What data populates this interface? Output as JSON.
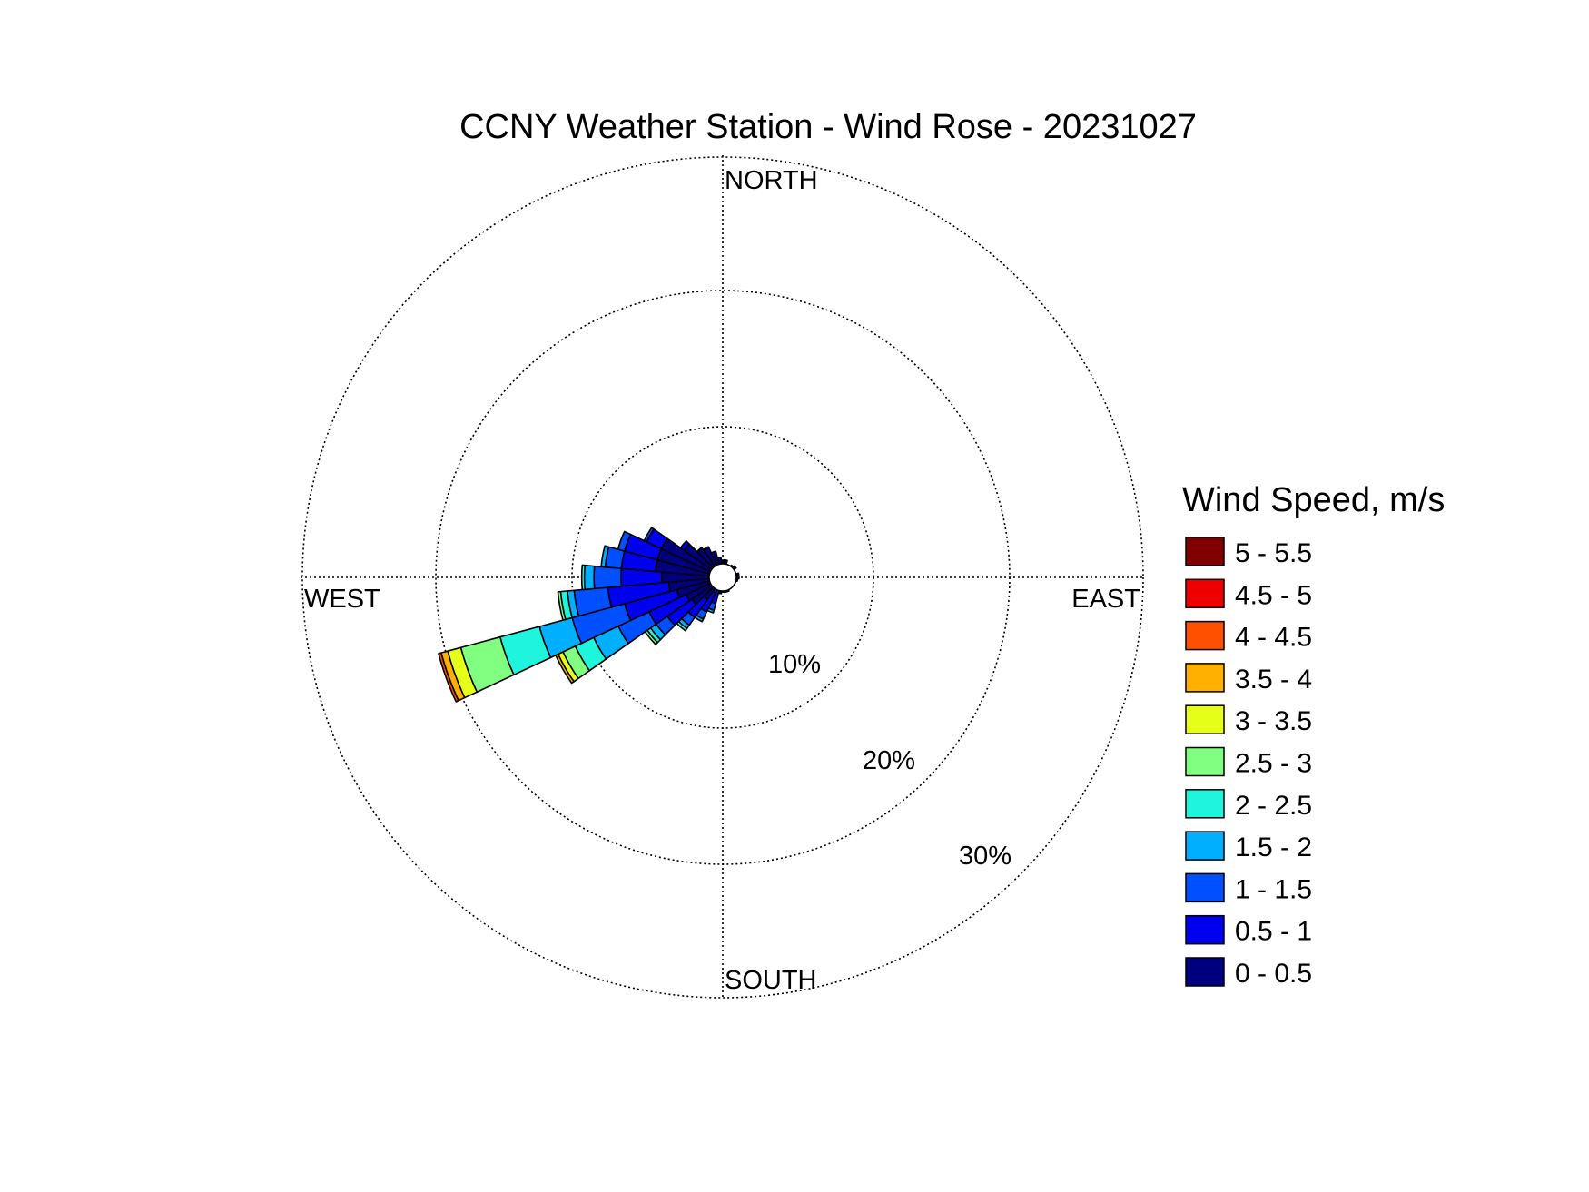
{
  "chart_data": {
    "type": "wind-rose",
    "title": "CCNY Weather Station - Wind Rose - 20231027",
    "direction_labels": {
      "north": "NORTH",
      "east": "EAST",
      "south": "SOUTH",
      "west": "WEST"
    },
    "radial_ticks": [
      {
        "value": 10,
        "label": "10%"
      },
      {
        "value": 20,
        "label": "20%"
      },
      {
        "value": 30,
        "label": "30%"
      }
    ],
    "radial_max": 31,
    "grid": true,
    "legend": {
      "title": "Wind Speed, m/s",
      "placement": "right",
      "bins": [
        {
          "label": "5 - 5.5",
          "color": "#800000"
        },
        {
          "label": "4.5 - 5",
          "color": "#ee0000"
        },
        {
          "label": "4 - 4.5",
          "color": "#ff5000"
        },
        {
          "label": "3.5 - 4",
          "color": "#ffb000"
        },
        {
          "label": "3 - 3.5",
          "color": "#e6ff18"
        },
        {
          "label": "2.5 - 3",
          "color": "#80ff80"
        },
        {
          "label": "2 - 2.5",
          "color": "#1ff5dc"
        },
        {
          "label": "1.5 - 2",
          "color": "#00b0ff"
        },
        {
          "label": "1 - 1.5",
          "color": "#0050ff"
        },
        {
          "label": "0.5 - 1",
          "color": "#0000f0"
        },
        {
          "label": "0 - 0.5",
          "color": "#00007f"
        }
      ]
    },
    "sector_width_deg": 10,
    "sectors": [
      {
        "direction": 0,
        "cumulative": [
          1.2
        ]
      },
      {
        "direction": 10,
        "cumulative": [
          1.3
        ]
      },
      {
        "direction": 20,
        "cumulative": [
          1.0
        ]
      },
      {
        "direction": 30,
        "cumulative": [
          1.0
        ]
      },
      {
        "direction": 40,
        "cumulative": [
          1.1
        ]
      },
      {
        "direction": 50,
        "cumulative": [
          1.2
        ]
      },
      {
        "direction": 60,
        "cumulative": [
          1.0
        ]
      },
      {
        "direction": 70,
        "cumulative": [
          1.0
        ]
      },
      {
        "direction": 80,
        "cumulative": [
          1.2
        ]
      },
      {
        "direction": 90,
        "cumulative": [
          1.2
        ]
      },
      {
        "direction": 100,
        "cumulative": [
          1.1
        ]
      },
      {
        "direction": 110,
        "cumulative": [
          1.0
        ]
      },
      {
        "direction": 120,
        "cumulative": [
          0.9
        ]
      },
      {
        "direction": 130,
        "cumulative": [
          1.0
        ]
      },
      {
        "direction": 140,
        "cumulative": [
          1.0
        ]
      },
      {
        "direction": 150,
        "cumulative": [
          1.0
        ]
      },
      {
        "direction": 160,
        "cumulative": [
          1.1
        ]
      },
      {
        "direction": 170,
        "cumulative": [
          1.1
        ]
      },
      {
        "direction": 180,
        "cumulative": [
          1.0
        ]
      },
      {
        "direction": 190,
        "cumulative": [
          1.2
        ]
      },
      {
        "direction": 200,
        "cumulative": [
          1.0,
          2.0,
          2.5,
          2.7
        ]
      },
      {
        "direction": 210,
        "cumulative": [
          1.3,
          2.8,
          3.4,
          3.6
        ]
      },
      {
        "direction": 220,
        "cumulative": [
          2.0,
          3.6,
          4.3,
          4.6,
          4.8
        ]
      },
      {
        "direction": 230,
        "cumulative": [
          2.8,
          5.0,
          6.0,
          6.5,
          6.8,
          7.0
        ]
      },
      {
        "direction": 240,
        "cumulative": [
          3.0,
          6.0,
          8.5,
          10.5,
          12.0,
          13.0,
          13.4,
          13.6
        ]
      },
      {
        "direction": 250,
        "cumulative": [
          3.5,
          7.5,
          11.5,
          14.0,
          17.0,
          20.0,
          21.0,
          21.5,
          21.7
        ]
      },
      {
        "direction": 260,
        "cumulative": [
          4.0,
          8.5,
          11.0,
          11.5,
          12.0,
          12.2
        ]
      },
      {
        "direction": 270,
        "cumulative": [
          4.5,
          7.5,
          9.5,
          10.2,
          10.4
        ]
      },
      {
        "direction": 280,
        "cumulative": [
          5.0,
          7.5,
          8.7,
          9.0
        ]
      },
      {
        "direction": 290,
        "cumulative": [
          5.0,
          7.5,
          8.0
        ]
      },
      {
        "direction": 300,
        "cumulative": [
          5.0,
          6.2,
          6.4
        ]
      },
      {
        "direction": 310,
        "cumulative": [
          3.5,
          3.8
        ]
      },
      {
        "direction": 320,
        "cumulative": [
          2.6,
          2.7
        ]
      },
      {
        "direction": 330,
        "cumulative": [
          2.5
        ]
      },
      {
        "direction": 340,
        "cumulative": [
          2.0
        ]
      },
      {
        "direction": 350,
        "cumulative": [
          1.5
        ]
      }
    ]
  }
}
